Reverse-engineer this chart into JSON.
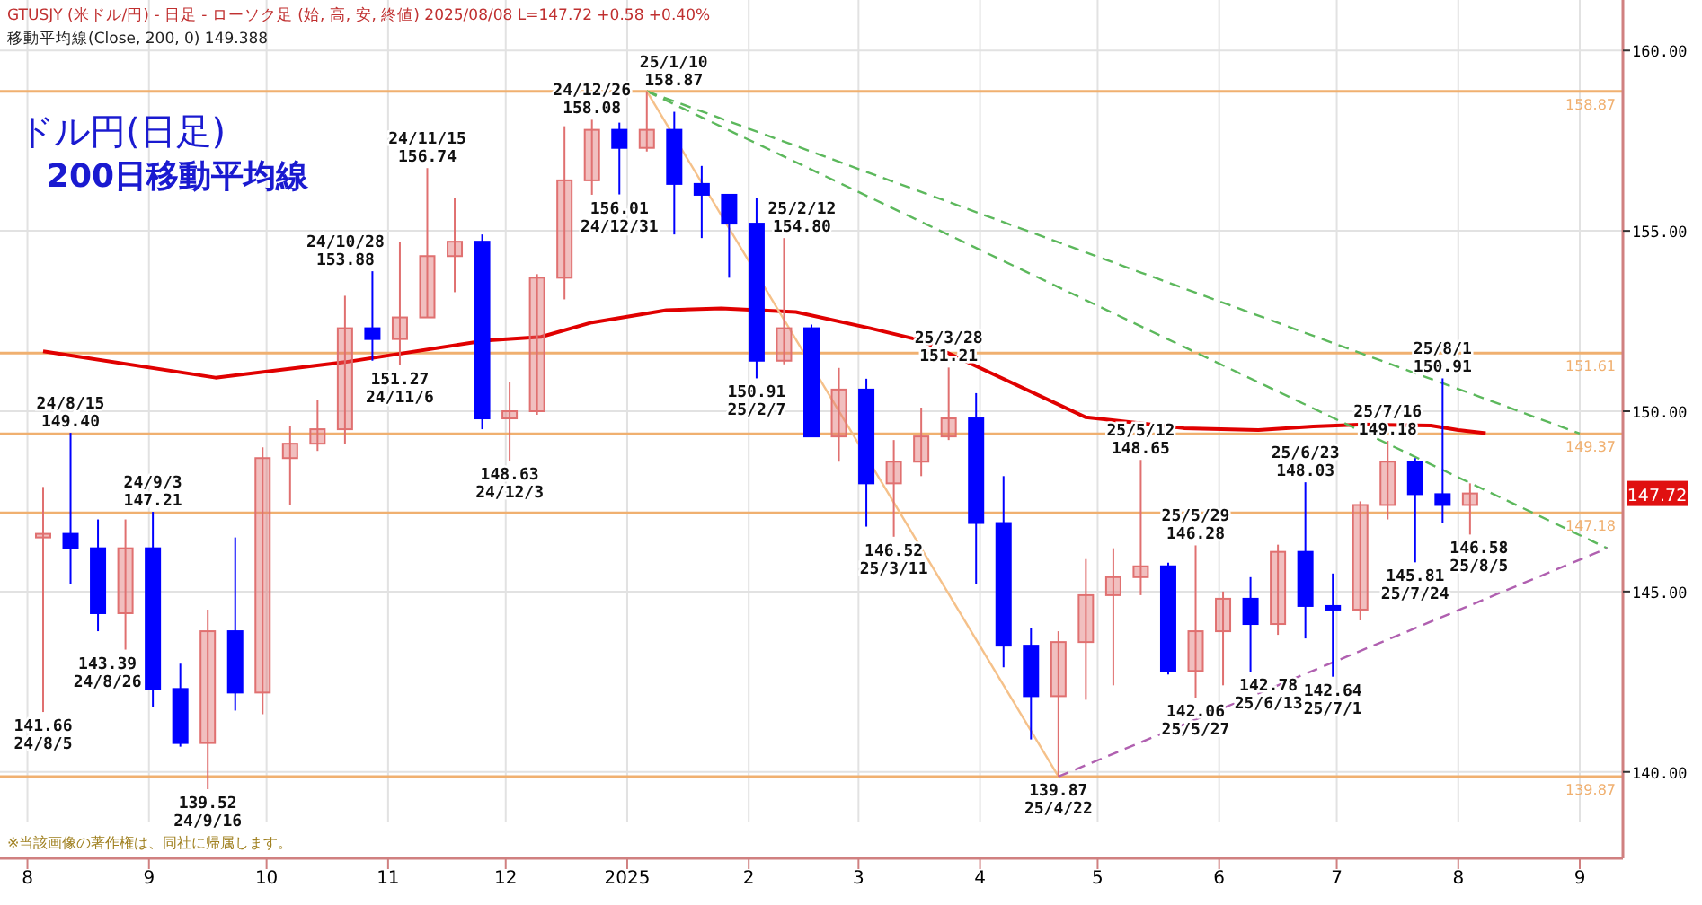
{
  "chart_data": {
    "type": "candlestick",
    "title": "ドル円(日足)",
    "subtitle": "200日移動平均線",
    "x": [
      "2024-08-05",
      "2024-08-12",
      "2024-08-19",
      "2024-08-26",
      "2024-09-02",
      "2024-09-09",
      "2024-09-16",
      "2024-09-23",
      "2024-09-30",
      "2024-10-07",
      "2024-10-14",
      "2024-10-21",
      "2024-10-28",
      "2024-11-04",
      "2024-11-11",
      "2024-11-18",
      "2024-11-25",
      "2024-12-02",
      "2024-12-09",
      "2024-12-16",
      "2024-12-23",
      "2024-12-30",
      "2025-01-06",
      "2025-01-13",
      "2025-01-20",
      "2025-01-27",
      "2025-02-03",
      "2025-02-10",
      "2025-02-17",
      "2025-02-24",
      "2025-03-03",
      "2025-03-10",
      "2025-03-17",
      "2025-03-24",
      "2025-03-31",
      "2025-04-07",
      "2025-04-14",
      "2025-04-21",
      "2025-04-28",
      "2025-05-05",
      "2025-05-12",
      "2025-05-19",
      "2025-05-26",
      "2025-06-02",
      "2025-06-09",
      "2025-06-16",
      "2025-06-23",
      "2025-06-30",
      "2025-07-07",
      "2025-07-14",
      "2025-07-21",
      "2025-07-28",
      "2025-08-04"
    ],
    "ohlc": [
      [
        146.5,
        147.9,
        141.66,
        146.6
      ],
      [
        146.6,
        149.4,
        145.2,
        146.2
      ],
      [
        146.2,
        147.0,
        143.9,
        144.4
      ],
      [
        144.4,
        147.0,
        143.39,
        146.2
      ],
      [
        146.2,
        147.21,
        141.8,
        142.3
      ],
      [
        142.3,
        143.0,
        140.7,
        140.8
      ],
      [
        140.8,
        144.5,
        139.52,
        143.9
      ],
      [
        143.9,
        146.5,
        141.7,
        142.2
      ],
      [
        142.2,
        149.0,
        141.6,
        148.7
      ],
      [
        148.7,
        149.6,
        147.4,
        149.1
      ],
      [
        149.1,
        150.3,
        148.9,
        149.5
      ],
      [
        149.5,
        153.2,
        149.1,
        152.3
      ],
      [
        152.3,
        153.88,
        151.4,
        152.0
      ],
      [
        152.0,
        154.7,
        151.27,
        152.6
      ],
      [
        152.6,
        156.74,
        152.6,
        154.3
      ],
      [
        154.3,
        155.9,
        153.3,
        154.7
      ],
      [
        154.7,
        154.9,
        149.5,
        149.8
      ],
      [
        149.8,
        150.8,
        148.63,
        150.0
      ],
      [
        150.0,
        153.8,
        149.9,
        153.7
      ],
      [
        153.7,
        157.9,
        153.1,
        156.4
      ],
      [
        156.4,
        158.08,
        156.0,
        157.8
      ],
      [
        157.8,
        158.0,
        156.01,
        157.3
      ],
      [
        157.3,
        158.87,
        157.2,
        157.8
      ],
      [
        157.8,
        158.3,
        154.9,
        156.3
      ],
      [
        156.3,
        156.8,
        154.8,
        156.0
      ],
      [
        156.0,
        156.0,
        153.7,
        155.2
      ],
      [
        155.2,
        155.9,
        150.91,
        151.4
      ],
      [
        151.4,
        154.8,
        151.3,
        152.3
      ],
      [
        152.3,
        152.4,
        149.3,
        149.3
      ],
      [
        149.3,
        151.2,
        148.6,
        150.6
      ],
      [
        150.6,
        150.9,
        146.8,
        148.0
      ],
      [
        148.0,
        149.2,
        146.52,
        148.6
      ],
      [
        148.6,
        150.1,
        148.2,
        149.3
      ],
      [
        149.3,
        151.21,
        149.2,
        149.8
      ],
      [
        149.8,
        150.5,
        145.2,
        146.9
      ],
      [
        146.9,
        148.2,
        142.9,
        143.5
      ],
      [
        143.5,
        144.0,
        140.9,
        142.1
      ],
      [
        142.1,
        143.9,
        139.87,
        143.6
      ],
      [
        143.6,
        145.9,
        142.0,
        144.9
      ],
      [
        144.9,
        146.2,
        142.4,
        145.4
      ],
      [
        145.4,
        148.65,
        144.9,
        145.7
      ],
      [
        145.7,
        145.8,
        142.7,
        142.8
      ],
      [
        142.8,
        146.28,
        142.06,
        143.9
      ],
      [
        143.9,
        145.0,
        142.4,
        144.8
      ],
      [
        144.8,
        145.4,
        142.78,
        144.1
      ],
      [
        144.1,
        146.3,
        143.8,
        146.1
      ],
      [
        146.1,
        148.03,
        143.7,
        144.6
      ],
      [
        144.6,
        145.5,
        142.64,
        144.5
      ],
      [
        144.5,
        147.5,
        144.2,
        147.4
      ],
      [
        147.4,
        149.18,
        147.0,
        148.6
      ],
      [
        148.6,
        148.7,
        145.81,
        147.7
      ],
      [
        147.7,
        150.91,
        146.9,
        147.4
      ],
      [
        147.4,
        148.0,
        146.58,
        147.72
      ]
    ],
    "colors": [
      "#e07070",
      "#0000ff",
      "#0000ff",
      "#e07070",
      "#0000ff",
      "#0000ff",
      "#e07070",
      "#0000ff",
      "#e07070",
      "#e07070",
      "#e07070",
      "#e07070",
      "#0000ff",
      "#e07070",
      "#e07070",
      "#e07070",
      "#0000ff",
      "#e07070",
      "#e07070",
      "#e07070",
      "#e07070",
      "#0000ff",
      "#e07070",
      "#0000ff",
      "#0000ff",
      "#0000ff",
      "#0000ff",
      "#e07070",
      "#0000ff",
      "#e07070",
      "#0000ff",
      "#e07070",
      "#e07070",
      "#e07070",
      "#0000ff",
      "#0000ff",
      "#0000ff",
      "#e07070",
      "#e07070",
      "#e07070",
      "#e07070",
      "#0000ff",
      "#e07070",
      "#e07070",
      "#0000ff",
      "#e07070",
      "#0000ff",
      "#0000ff",
      "#e07070",
      "#e07070",
      "#0000ff",
      "#0000ff",
      "#e07070"
    ],
    "series": [
      {
        "type": "line",
        "color": "#e00000",
        "x": [
          "2024-08-05",
          "2024-09-18",
          "2024-10-21",
          "2024-11-26",
          "2024-12-10",
          "2024-12-23",
          "2025-01-11",
          "2025-01-25",
          "2025-02-13",
          "2025-03-04",
          "2025-03-17",
          "2025-03-30",
          "2025-04-28",
          "2025-05-23",
          "2025-06-11",
          "2025-06-25",
          "2025-07-08",
          "2025-07-25",
          "2025-08-01",
          "2025-08-08"
        ],
        "values": [
          151.66,
          150.93,
          151.36,
          151.96,
          152.06,
          152.46,
          152.8,
          152.85,
          152.75,
          152.3,
          151.96,
          151.3,
          149.83,
          149.53,
          149.48,
          149.58,
          149.63,
          149.6,
          149.48,
          149.39
        ]
      },
      {
        "type": "line",
        "color": "#5cb85c",
        "line_style": "dashed",
        "x": [
          "2025-01-06",
          "2025-09-01"
        ],
        "values": [
          158.87,
          149.38
        ]
      },
      {
        "type": "line",
        "color": "#5cb85c",
        "line_style": "dashed",
        "x": [
          "2025-01-06",
          "2025-09-08"
        ],
        "values": [
          158.87,
          146.2
        ]
      },
      {
        "type": "line",
        "color": "#f5c18a",
        "x": [
          "2025-01-06",
          "2025-04-21"
        ],
        "values": [
          158.87,
          139.87
        ]
      },
      {
        "type": "line",
        "color": "#b060b0",
        "line_style": "dashed",
        "x": [
          "2025-04-21",
          "2025-09-08"
        ],
        "values": [
          139.87,
          146.2
        ]
      }
    ],
    "ref_lines": [
      {
        "axis": "y",
        "value": 158.87,
        "label": "158.87",
        "color": "#f0b070"
      },
      {
        "axis": "y",
        "value": 151.61,
        "label": "151.61",
        "color": "#f0b070"
      },
      {
        "axis": "y",
        "value": 149.37,
        "label": "149.37",
        "color": "#f0b070"
      },
      {
        "axis": "y",
        "value": 147.18,
        "label": "147.18",
        "color": "#f0b070"
      },
      {
        "axis": "y",
        "value": 139.87,
        "label": "139.87",
        "color": "#f0b070"
      }
    ],
    "xlim": [
      "2024-07-25",
      "2025-09-12"
    ],
    "xticks": [
      {
        "value": "2024-08-01",
        "label": "8"
      },
      {
        "value": "2024-09-01",
        "label": "9"
      },
      {
        "value": "2024-10-01",
        "label": "10"
      },
      {
        "value": "2024-11-01",
        "label": "11"
      },
      {
        "value": "2024-12-01",
        "label": "12"
      },
      {
        "value": "2025-01-01",
        "label": "2025"
      },
      {
        "value": "2025-02-01",
        "label": "2"
      },
      {
        "value": "2025-03-01",
        "label": "3"
      },
      {
        "value": "2025-04-01",
        "label": "4"
      },
      {
        "value": "2025-05-01",
        "label": "5"
      },
      {
        "value": "2025-06-01",
        "label": "6"
      },
      {
        "value": "2025-07-01",
        "label": "7"
      },
      {
        "value": "2025-08-01",
        "label": "8"
      },
      {
        "value": "2025-09-01",
        "label": "9"
      }
    ],
    "ylim": [
      138.6,
      161.4
    ],
    "yticks": [
      {
        "value": 140,
        "label": "140.00"
      },
      {
        "value": 145,
        "label": "145.00"
      },
      {
        "value": 150,
        "label": "150.00"
      },
      {
        "value": 155,
        "label": "155.00"
      },
      {
        "value": 160,
        "label": "160.00"
      }
    ],
    "grid": true,
    "annotations": [
      "GTUSJY (米ドル/円) - 日足 - ローソク足 (始, 高, 安, 終値)  2025/08/08 L=147.72 +0.58 +0.40%",
      "移動平均線(Close, 200, 0) 149.388",
      "※当該画像の著作権は、同社に帰属します。",
      {
        "text": "147.72",
        "y": 147.72
      },
      {
        "text": "141.66\n24/8/5",
        "x": "2024-08-05",
        "y": 141.66
      },
      {
        "text": "24/8/15\n149.40",
        "x": "2024-08-12",
        "y": 149.4
      },
      {
        "text": "143.39\n24/8/26",
        "x": "2024-08-26",
        "y": 143.39
      },
      {
        "text": "24/9/3\n147.21",
        "x": "2024-09-02",
        "y": 147.21
      },
      {
        "text": "139.52\n24/9/16",
        "x": "2024-09-16",
        "y": 139.52
      },
      {
        "text": "24/10/28\n153.88",
        "x": "2024-10-28",
        "y": 153.88
      },
      {
        "text": "151.27\n24/11/6",
        "x": "2024-11-04",
        "y": 151.27
      },
      {
        "text": "24/11/15\n156.74",
        "x": "2024-11-11",
        "y": 156.74
      },
      {
        "text": "148.63\n24/12/3",
        "x": "2024-12-02",
        "y": 148.63
      },
      {
        "text": "24/12/26\n158.08",
        "x": "2024-12-23",
        "y": 158.08
      },
      {
        "text": "156.01\n24/12/31",
        "x": "2024-12-30",
        "y": 156.01
      },
      {
        "text": "25/1/10\n158.87",
        "x": "2025-01-06",
        "y": 158.87
      },
      {
        "text": "150.91\n25/2/7",
        "x": "2025-02-03",
        "y": 150.91
      },
      {
        "text": "25/2/12\n154.80",
        "x": "2025-02-10",
        "y": 154.8
      },
      {
        "text": "146.52\n25/3/11",
        "x": "2025-03-10",
        "y": 146.52
      },
      {
        "text": "25/3/28\n151.21",
        "x": "2025-03-24",
        "y": 151.21
      },
      {
        "text": "139.87\n25/4/22",
        "x": "2025-04-21",
        "y": 139.87
      },
      {
        "text": "25/5/12\n148.65",
        "x": "2025-05-12",
        "y": 148.65
      },
      {
        "text": "142.06\n25/5/27",
        "x": "2025-05-26",
        "y": 142.06
      },
      {
        "text": "25/5/29\n146.28",
        "x": "2025-05-26",
        "y": 146.28
      },
      {
        "text": "142.78\n25/6/13",
        "x": "2025-06-09",
        "y": 142.78
      },
      {
        "text": "25/6/23\n148.03",
        "x": "2025-06-23",
        "y": 148.03
      },
      {
        "text": "142.64\n25/7/1",
        "x": "2025-06-30",
        "y": 142.64
      },
      {
        "text": "25/7/16\n149.18",
        "x": "2025-07-14",
        "y": 149.18
      },
      {
        "text": "145.81\n25/7/24",
        "x": "2025-07-21",
        "y": 145.81
      },
      {
        "text": "25/8/1\n150.91",
        "x": "2025-07-28",
        "y": 150.91
      },
      {
        "text": "146.58\n25/8/5",
        "x": "2025-08-04",
        "y": 146.58
      }
    ]
  }
}
